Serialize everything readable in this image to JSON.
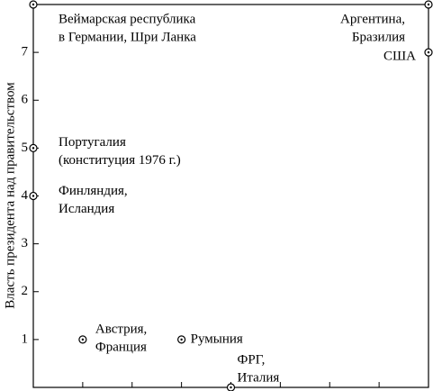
{
  "chart_data": {
    "type": "scatter",
    "ylabel": "Власть президента над правительством",
    "xlim": [
      0,
      8
    ],
    "xticks": [
      1,
      2,
      3,
      4,
      5,
      6,
      7
    ],
    "ylim": [
      0,
      8
    ],
    "yticks": [
      1,
      2,
      3,
      4,
      5,
      6,
      7
    ],
    "color": "#000000",
    "series": [
      {
        "x": [
          0,
          8,
          8,
          0,
          0,
          1,
          3,
          4
        ],
        "values": [
          8,
          8,
          7,
          5,
          4,
          1,
          1,
          0
        ],
        "labels": [
          [
            "Веймарская республика",
            "в Германии, Шри Ланка"
          ],
          [
            "Аргентина,",
            "Бразилия"
          ],
          [
            "США"
          ],
          [
            "Португалия",
            "(конституция 1976 г.)"
          ],
          [
            "Финляндия,",
            "Исландия"
          ],
          [
            "Австрия,",
            "Франция"
          ],
          [
            "Румыния"
          ],
          [
            "ФРГ,",
            "Италия"
          ]
        ]
      }
    ]
  }
}
